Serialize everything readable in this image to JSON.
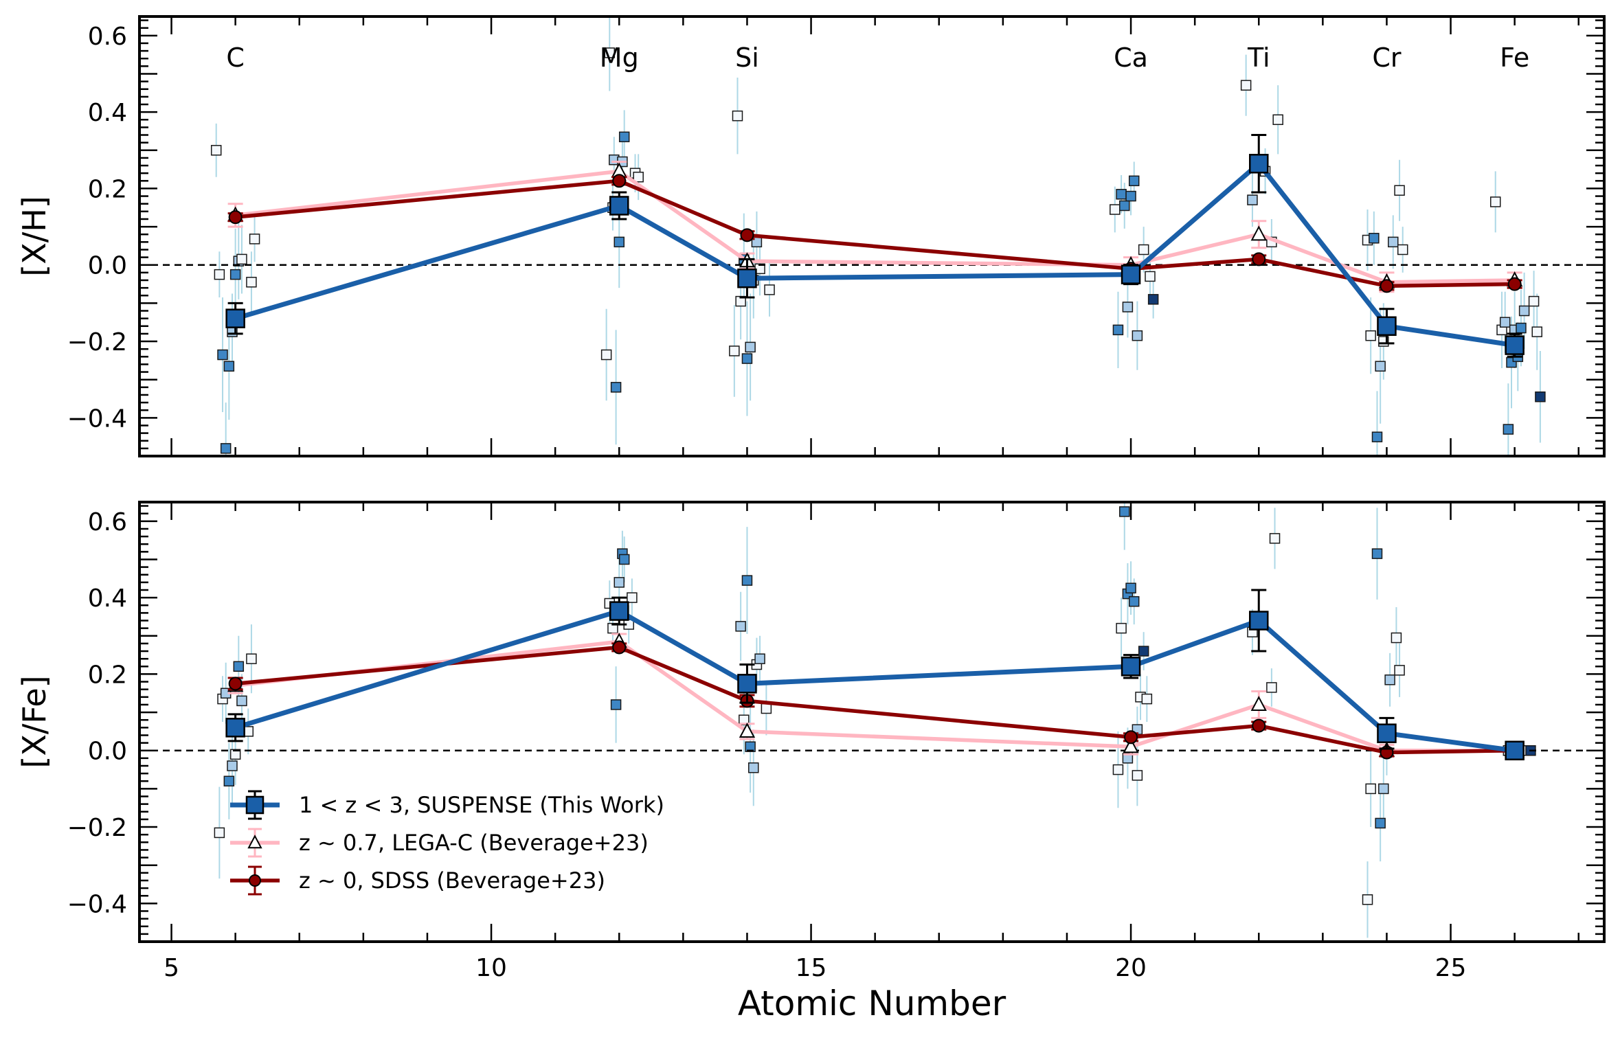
{
  "chart_data": [
    {
      "type": "line",
      "panel": "top",
      "ylabel": "[X/H]",
      "xlabel": "",
      "xlim": [
        4.5,
        27.4
      ],
      "ylim": [
        -0.5,
        0.65
      ],
      "xticks": [
        5,
        10,
        15,
        20,
        25
      ],
      "xtick_labels": [
        "",
        "",
        "",
        "",
        ""
      ],
      "yticks": [
        -0.4,
        -0.2,
        0.0,
        0.2,
        0.4,
        0.6
      ],
      "ytick_labels": [
        "−0.4",
        "−0.2",
        "0.0",
        "0.2",
        "0.4",
        "0.6"
      ],
      "element_labels": [
        {
          "x": 6,
          "label": "C"
        },
        {
          "x": 12,
          "label": "Mg"
        },
        {
          "x": 14,
          "label": "Si"
        },
        {
          "x": 20,
          "label": "Ca"
        },
        {
          "x": 22,
          "label": "Ti"
        },
        {
          "x": 24,
          "label": "Cr"
        },
        {
          "x": 26,
          "label": "Fe"
        }
      ],
      "reference_line": 0.0,
      "series": [
        {
          "name": "1 < z < 3, SUSPENSE (This Work)",
          "color": "#1a5fa8",
          "marker": "square",
          "x": [
            6,
            12,
            14,
            20,
            22,
            24,
            26
          ],
          "y": [
            -0.14,
            0.155,
            -0.035,
            -0.025,
            0.265,
            -0.16,
            -0.21
          ],
          "err": [
            0.04,
            0.035,
            0.05,
            0.025,
            0.075,
            0.045,
            0.03
          ]
        },
        {
          "name": "z ~ 0.7, LEGA-C (Beverage+23)",
          "color": "#ffb6c1",
          "marker": "triangle",
          "x": [
            6,
            12,
            14,
            20,
            22,
            24,
            26
          ],
          "y": [
            0.13,
            0.245,
            0.01,
            0.0,
            0.08,
            -0.045,
            -0.04
          ],
          "err": [
            0.03,
            0.025,
            0.02,
            0.02,
            0.035,
            0.025,
            0.02
          ]
        },
        {
          "name": "z ~ 0, SDSS (Beverage+23)",
          "color": "#8b0000",
          "marker": "circle",
          "x": [
            6,
            12,
            14,
            20,
            22,
            24,
            26
          ],
          "y": [
            0.125,
            0.22,
            0.078,
            -0.01,
            0.015,
            -0.055,
            -0.05
          ],
          "err": [
            0.01,
            0.01,
            0.01,
            0.01,
            0.01,
            0.01,
            0.01
          ]
        }
      ],
      "individual_points": [
        [
          5.7,
          0.3,
          0.07,
          "w"
        ],
        [
          5.75,
          -0.025,
          0.06,
          "w"
        ],
        [
          5.8,
          -0.235,
          0.15,
          "m"
        ],
        [
          5.85,
          -0.48,
          0.12,
          "m"
        ],
        [
          5.9,
          -0.265,
          0.14,
          "m"
        ],
        [
          5.95,
          -0.175,
          0.1,
          "l"
        ],
        [
          6.0,
          -0.025,
          0.12,
          "m"
        ],
        [
          6.05,
          0.01,
          0.1,
          "l"
        ],
        [
          6.1,
          0.015,
          0.09,
          "w"
        ],
        [
          6.25,
          -0.045,
          0.08,
          "w"
        ],
        [
          6.3,
          0.068,
          0.06,
          "w"
        ],
        [
          11.8,
          -0.235,
          0.12,
          "w"
        ],
        [
          11.85,
          0.555,
          0.1,
          "w"
        ],
        [
          11.9,
          0.15,
          0.06,
          "w"
        ],
        [
          11.95,
          -0.32,
          0.15,
          "m"
        ],
        [
          12.0,
          0.06,
          0.12,
          "m"
        ],
        [
          11.92,
          0.275,
          0.06,
          "l"
        ],
        [
          12.05,
          0.27,
          0.06,
          "l"
        ],
        [
          12.08,
          0.335,
          0.07,
          "m"
        ],
        [
          12.25,
          0.24,
          0.05,
          "w"
        ],
        [
          12.3,
          0.23,
          0.06,
          "w"
        ],
        [
          13.8,
          -0.225,
          0.12,
          "w"
        ],
        [
          13.85,
          0.39,
          0.1,
          "w"
        ],
        [
          13.9,
          -0.095,
          0.1,
          "w"
        ],
        [
          13.95,
          0.015,
          0.12,
          "m"
        ],
        [
          14.0,
          -0.245,
          0.15,
          "m"
        ],
        [
          14.05,
          -0.215,
          0.14,
          "l"
        ],
        [
          14.1,
          -0.04,
          0.1,
          "w"
        ],
        [
          14.15,
          0.06,
          0.08,
          "l"
        ],
        [
          14.2,
          -0.01,
          0.07,
          "w"
        ],
        [
          14.35,
          -0.065,
          0.07,
          "w"
        ],
        [
          19.75,
          0.145,
          0.06,
          "w"
        ],
        [
          19.8,
          -0.17,
          0.1,
          "m"
        ],
        [
          19.85,
          0.185,
          0.05,
          "m"
        ],
        [
          19.9,
          0.155,
          0.06,
          "m"
        ],
        [
          19.95,
          -0.11,
          0.08,
          "l"
        ],
        [
          20.0,
          0.18,
          0.05,
          "m"
        ],
        [
          20.05,
          0.22,
          0.05,
          "m"
        ],
        [
          20.1,
          -0.185,
          0.09,
          "l"
        ],
        [
          20.2,
          0.04,
          0.06,
          "w"
        ],
        [
          20.3,
          -0.03,
          0.06,
          "w"
        ],
        [
          20.35,
          -0.09,
          0.05,
          "d"
        ],
        [
          21.8,
          0.47,
          0.08,
          "w"
        ],
        [
          21.9,
          0.17,
          0.07,
          "l"
        ],
        [
          22.1,
          0.245,
          0.06,
          "w"
        ],
        [
          22.2,
          0.06,
          0.06,
          "w"
        ],
        [
          22.3,
          0.38,
          0.09,
          "w"
        ],
        [
          23.7,
          0.065,
          0.08,
          "w"
        ],
        [
          23.75,
          -0.185,
          0.1,
          "w"
        ],
        [
          23.8,
          0.07,
          0.07,
          "m"
        ],
        [
          23.85,
          -0.45,
          0.12,
          "m"
        ],
        [
          23.9,
          -0.265,
          0.15,
          "l"
        ],
        [
          23.95,
          -0.2,
          0.1,
          "w"
        ],
        [
          24.1,
          0.06,
          0.07,
          "l"
        ],
        [
          24.2,
          0.195,
          0.08,
          "w"
        ],
        [
          24.25,
          0.04,
          0.06,
          "w"
        ],
        [
          25.7,
          0.165,
          0.08,
          "w"
        ],
        [
          25.8,
          -0.17,
          0.1,
          "w"
        ],
        [
          25.85,
          -0.15,
          0.08,
          "l"
        ],
        [
          25.9,
          -0.43,
          0.12,
          "m"
        ],
        [
          25.95,
          -0.255,
          0.12,
          "m"
        ],
        [
          26.0,
          -0.17,
          0.1,
          "l"
        ],
        [
          26.05,
          -0.24,
          0.09,
          "m"
        ],
        [
          26.1,
          -0.165,
          0.1,
          "m"
        ],
        [
          26.15,
          -0.12,
          0.1,
          "l"
        ],
        [
          26.3,
          -0.095,
          0.08,
          "w"
        ],
        [
          26.35,
          -0.175,
          0.1,
          "w"
        ],
        [
          26.4,
          -0.345,
          0.12,
          "d"
        ]
      ]
    },
    {
      "type": "line",
      "panel": "bottom",
      "ylabel": "[X/Fe]",
      "xlabel": "Atomic Number",
      "xlim": [
        4.5,
        27.4
      ],
      "ylim": [
        -0.5,
        0.65
      ],
      "xticks": [
        5,
        10,
        15,
        20,
        25
      ],
      "xtick_labels": [
        "5",
        "10",
        "15",
        "20",
        "25"
      ],
      "yticks": [
        -0.4,
        -0.2,
        0.0,
        0.2,
        0.4,
        0.6
      ],
      "ytick_labels": [
        "−0.4",
        "−0.2",
        "0.0",
        "0.2",
        "0.4",
        "0.6"
      ],
      "reference_line": 0.0,
      "legend_position": "lower-left",
      "series": [
        {
          "name": "1 < z < 3, SUSPENSE (This Work)",
          "color": "#1a5fa8",
          "marker": "square",
          "x": [
            6,
            12,
            14,
            20,
            22,
            24,
            26
          ],
          "y": [
            0.06,
            0.365,
            0.175,
            0.22,
            0.34,
            0.045,
            0.0
          ],
          "err": [
            0.035,
            0.035,
            0.05,
            0.03,
            0.08,
            0.04,
            0.01
          ]
        },
        {
          "name": "z ~ 0.7, LEGA-C (Beverage+23)",
          "color": "#ffb6c1",
          "marker": "triangle",
          "x": [
            6,
            12,
            14,
            20,
            22,
            24,
            26
          ],
          "y": [
            0.17,
            0.285,
            0.05,
            0.01,
            0.12,
            0.0,
            0.0
          ],
          "err": [
            0.02,
            0.02,
            0.02,
            0.02,
            0.035,
            0.015,
            0.01
          ]
        },
        {
          "name": "z ~ 0, SDSS (Beverage+23)",
          "color": "#8b0000",
          "marker": "circle",
          "x": [
            6,
            12,
            14,
            20,
            22,
            24,
            26
          ],
          "y": [
            0.175,
            0.27,
            0.13,
            0.035,
            0.065,
            -0.005,
            0.0
          ],
          "err": [
            0.015,
            0.01,
            0.015,
            0.01,
            0.01,
            0.01,
            0.01
          ]
        }
      ],
      "individual_points": [
        [
          5.75,
          -0.215,
          0.12,
          "w"
        ],
        [
          5.8,
          0.135,
          0.06,
          "w"
        ],
        [
          5.85,
          0.15,
          0.08,
          "l"
        ],
        [
          5.9,
          -0.08,
          0.1,
          "m"
        ],
        [
          5.95,
          -0.04,
          0.1,
          "l"
        ],
        [
          6.0,
          -0.01,
          0.08,
          "w"
        ],
        [
          6.05,
          0.22,
          0.08,
          "m"
        ],
        [
          6.1,
          0.13,
          0.07,
          "l"
        ],
        [
          6.2,
          0.05,
          0.06,
          "w"
        ],
        [
          6.25,
          0.24,
          0.09,
          "w"
        ],
        [
          11.85,
          0.385,
          0.06,
          "w"
        ],
        [
          11.9,
          0.32,
          0.06,
          "w"
        ],
        [
          11.95,
          0.12,
          0.1,
          "m"
        ],
        [
          12.0,
          0.44,
          0.07,
          "l"
        ],
        [
          12.05,
          0.515,
          0.06,
          "m"
        ],
        [
          12.08,
          0.5,
          0.06,
          "m"
        ],
        [
          12.15,
          0.33,
          0.05,
          "w"
        ],
        [
          12.2,
          0.4,
          0.05,
          "w"
        ],
        [
          13.9,
          0.325,
          0.09,
          "l"
        ],
        [
          13.95,
          0.08,
          0.09,
          "w"
        ],
        [
          14.0,
          0.445,
          0.14,
          "m"
        ],
        [
          14.05,
          0.01,
          0.12,
          "m"
        ],
        [
          14.1,
          -0.045,
          0.1,
          "l"
        ],
        [
          14.15,
          0.225,
          0.07,
          "w"
        ],
        [
          14.2,
          0.24,
          0.06,
          "l"
        ],
        [
          14.3,
          0.11,
          0.07,
          "w"
        ],
        [
          19.8,
          -0.05,
          0.1,
          "w"
        ],
        [
          19.85,
          0.32,
          0.08,
          "w"
        ],
        [
          19.9,
          0.625,
          0.1,
          "m"
        ],
        [
          19.95,
          0.41,
          0.08,
          "m"
        ],
        [
          20.0,
          0.425,
          0.07,
          "m"
        ],
        [
          20.05,
          0.39,
          0.06,
          "m"
        ],
        [
          20.1,
          -0.065,
          0.08,
          "w"
        ],
        [
          20.15,
          0.14,
          0.06,
          "w"
        ],
        [
          20.2,
          0.26,
          0.05,
          "d"
        ],
        [
          19.95,
          -0.02,
          0.08,
          "l"
        ],
        [
          20.25,
          0.135,
          0.06,
          "w"
        ],
        [
          20.1,
          0.055,
          0.06,
          "l"
        ],
        [
          21.9,
          0.31,
          0.06,
          "w"
        ],
        [
          22.2,
          0.165,
          0.05,
          "w"
        ],
        [
          22.25,
          0.555,
          0.08,
          "w"
        ],
        [
          23.7,
          -0.39,
          0.1,
          "w"
        ],
        [
          23.75,
          -0.1,
          0.1,
          "w"
        ],
        [
          23.85,
          0.515,
          0.12,
          "m"
        ],
        [
          23.9,
          -0.19,
          0.1,
          "m"
        ],
        [
          23.95,
          -0.1,
          0.08,
          "l"
        ],
        [
          24.0,
          -0.005,
          0.06,
          "w"
        ],
        [
          24.05,
          0.185,
          0.07,
          "l"
        ],
        [
          24.15,
          0.295,
          0.08,
          "w"
        ],
        [
          24.2,
          0.21,
          0.07,
          "w"
        ],
        [
          25.9,
          0.0,
          0.01,
          "w"
        ],
        [
          26.05,
          0.0,
          0.01,
          "m"
        ],
        [
          26.15,
          0.0,
          0.01,
          "w"
        ],
        [
          26.25,
          0.0,
          0.01,
          "d"
        ]
      ]
    }
  ],
  "legend": [
    {
      "label": "1 < z < 3, SUSPENSE (This Work)",
      "color": "#1a5fa8",
      "marker": "square"
    },
    {
      "label": "z ~ 0.7, LEGA-C (Beverage+23)",
      "color": "#ffb6c1",
      "marker": "triangle"
    },
    {
      "label": "z ~ 0, SDSS (Beverage+23)",
      "color": "#8b0000",
      "marker": "circle"
    }
  ],
  "colors": {
    "point_white": "#f4f8fc",
    "point_light": "#a9cbe8",
    "point_mid": "#3e86c4",
    "point_dark": "#123a73",
    "errorbar_faint": "#add8e6"
  }
}
